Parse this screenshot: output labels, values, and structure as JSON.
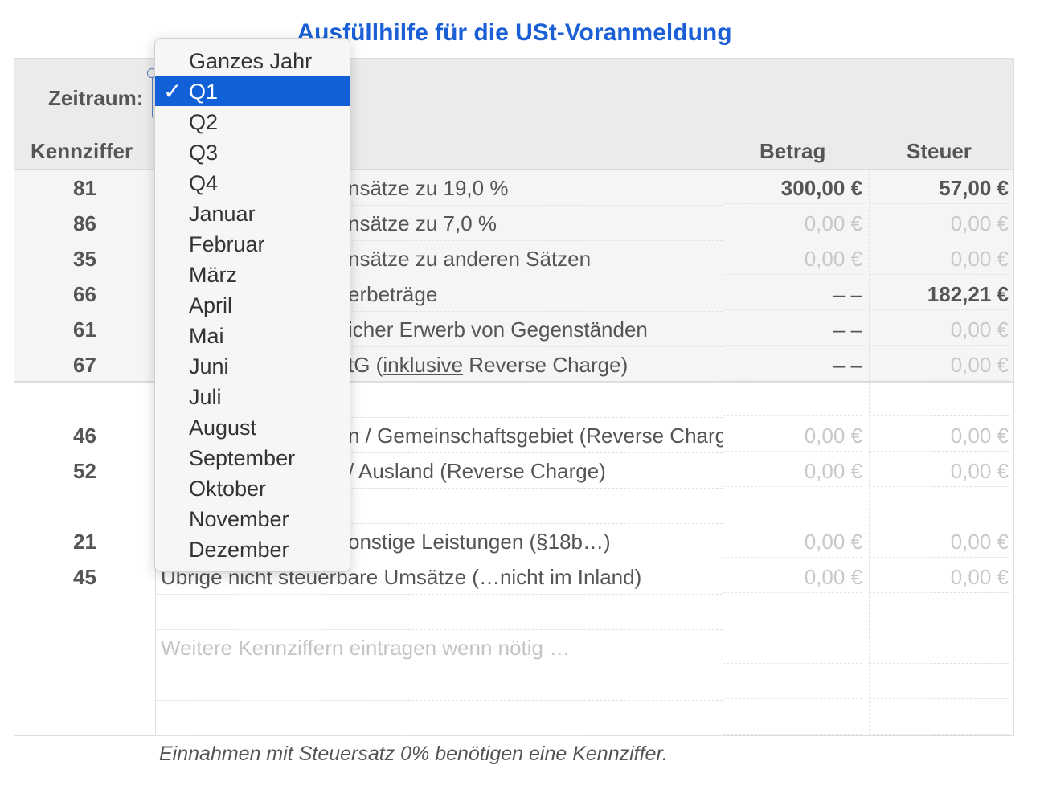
{
  "title": "Ausfüllhilfe für die USt-Voranmeldung",
  "zeitraum_label": "Zeitraum:",
  "columns": {
    "kennziffer": "Kennziffer",
    "betrag": "Betrag",
    "steuer": "Steuer"
  },
  "dropdown": {
    "selected": "Q1",
    "options": [
      "Ganzes Jahr",
      "Q1",
      "Q2",
      "Q3",
      "Q4",
      "Januar",
      "Februar",
      "März",
      "April",
      "Mai",
      "Juni",
      "Juli",
      "August",
      "September",
      "Oktober",
      "November",
      "Dezember"
    ]
  },
  "rows": [
    {
      "code": "81",
      "desc": "nsätze zu 19,0 %",
      "partial": true,
      "betrag": "300,00 €",
      "betrag_style": "bold",
      "steuer": "57,00 €",
      "steuer_style": "bold"
    },
    {
      "code": "86",
      "desc": "nsätze zu 7,0 %",
      "partial": true,
      "betrag": "0,00 €",
      "betrag_style": "light",
      "steuer": "0,00 €",
      "steuer_style": "light"
    },
    {
      "code": "35",
      "desc": "nsätze zu anderen Sätzen",
      "partial": true,
      "betrag": "0,00 €",
      "betrag_style": "light",
      "steuer": "0,00 €",
      "steuer_style": "light"
    },
    {
      "code": "66",
      "desc": "erbeträge",
      "partial": true,
      "betrag": "– –",
      "betrag_style": "dash",
      "steuer": "182,21 €",
      "steuer_style": "bold"
    },
    {
      "code": "61",
      "desc": "icher Erwerb von Gegenständen",
      "partial": true,
      "betrag": "– –",
      "betrag_style": "dash",
      "steuer": "0,00 €",
      "steuer_style": "light"
    },
    {
      "code": "67",
      "desc_parts": [
        {
          "text": "tG ("
        },
        {
          "text": "inklusive",
          "underline": true
        },
        {
          "text": " Reverse Charge)"
        }
      ],
      "partial": true,
      "betrag": "– –",
      "betrag_style": "dash",
      "steuer": "0,00 €",
      "steuer_style": "light"
    },
    {
      "code": "",
      "desc": ""
    },
    {
      "code": "46",
      "desc": "n / Gemeinschaftsgebiet (Reverse Charge)",
      "partial": true,
      "betrag": "0,00 €",
      "betrag_style": "light",
      "steuer": "0,00 €",
      "steuer_style": "light"
    },
    {
      "code": "52",
      "desc": "/ Ausland (Reverse Charge)",
      "partial": true,
      "betrag": "0,00 €",
      "betrag_style": "light",
      "steuer": "0,00 €",
      "steuer_style": "light"
    },
    {
      "code": "",
      "desc": ""
    },
    {
      "code": "21",
      "desc": "onstige Leistungen (§18b…)",
      "partial": true,
      "betrag": "0,00 €",
      "betrag_style": "light",
      "steuer": "0,00 €",
      "steuer_style": "light"
    },
    {
      "code": "45",
      "desc": "Übrige nicht steuerbare Umsätze (…nicht im Inland)",
      "partial": false,
      "betrag": "0,00 €",
      "betrag_style": "light",
      "steuer": "0,00 €",
      "steuer_style": "light"
    },
    {
      "code": "",
      "desc": ""
    },
    {
      "code": "",
      "desc": "Weitere Kennziffern eintragen wenn nötig …",
      "placeholder": true
    },
    {
      "code": "",
      "desc": ""
    },
    {
      "code": "",
      "desc": ""
    }
  ],
  "footer": "Einnahmen mit Steuersatz 0% benötigen eine Kennziffer.",
  "colors": {
    "accent": "#1a5fd6",
    "selection": "#1160d8",
    "header_bg": "#ebebeb"
  }
}
